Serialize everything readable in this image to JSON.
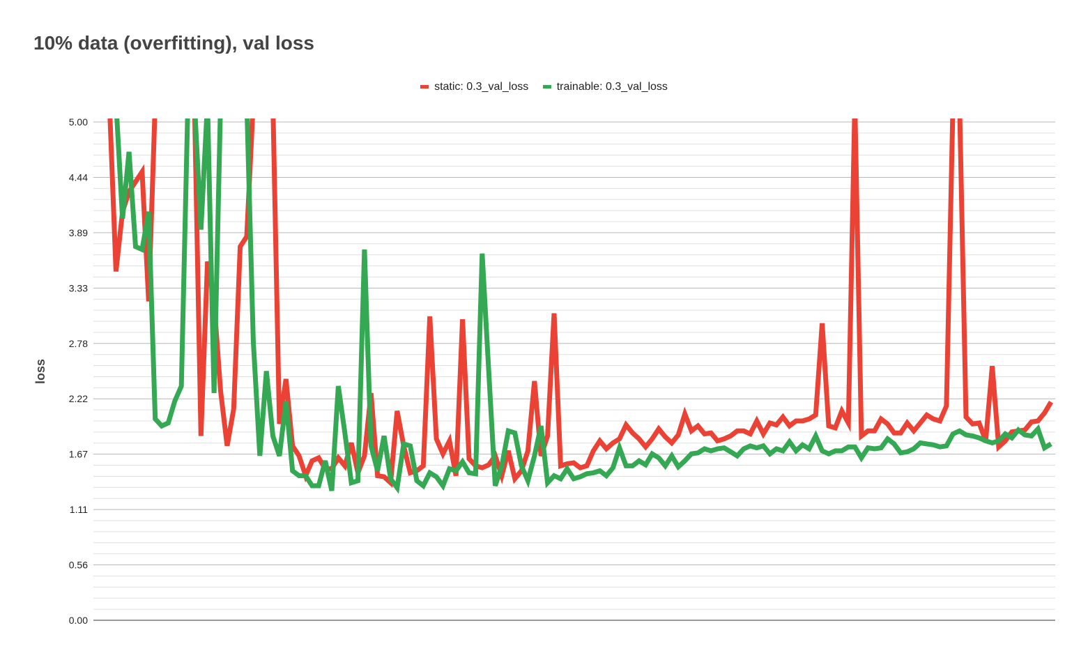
{
  "chart_data": {
    "type": "line",
    "title": "10% data (overfitting), val loss",
    "xlabel": "",
    "ylabel": "loss",
    "ylim": [
      0,
      5
    ],
    "yticks": [
      "0.00",
      "0.56",
      "1.11",
      "1.67",
      "2.22",
      "2.78",
      "3.33",
      "3.89",
      "4.44",
      "5.00"
    ],
    "minor_grid": true,
    "legend_position": "top-center",
    "series": [
      {
        "name": "static: 0.3_val_loss",
        "color": "#ea4335",
        "values": [
          5.2,
          3.5,
          4.1,
          4.3,
          4.4,
          4.5,
          3.2,
          5.2,
          5.2,
          5.2,
          5.2,
          5.2,
          5.2,
          5.2,
          1.85,
          3.6,
          3.2,
          2.3,
          1.75,
          2.12,
          3.75,
          3.85,
          5.2,
          5.2,
          5.2,
          5.2,
          1.97,
          2.42,
          1.75,
          1.65,
          1.45,
          1.6,
          1.63,
          1.52,
          1.52,
          1.63,
          1.55,
          1.78,
          1.48,
          1.65,
          2.28,
          1.45,
          1.44,
          1.38,
          2.1,
          1.75,
          1.48,
          1.5,
          1.55,
          3.05,
          1.82,
          1.67,
          1.8,
          1.45,
          3.02,
          1.62,
          1.55,
          1.53,
          1.56,
          1.65,
          1.45,
          1.7,
          1.42,
          1.5,
          1.7,
          2.4,
          1.65,
          1.85,
          3.08,
          1.55,
          1.57,
          1.58,
          1.53,
          1.55,
          1.7,
          1.8,
          1.72,
          1.78,
          1.82,
          1.96,
          1.88,
          1.82,
          1.74,
          1.82,
          1.92,
          1.84,
          1.78,
          1.86,
          2.07,
          1.9,
          1.95,
          1.87,
          1.88,
          1.8,
          1.82,
          1.85,
          1.9,
          1.9,
          1.87,
          2.0,
          1.87,
          1.98,
          1.96,
          2.04,
          1.95,
          2.0,
          2.0,
          2.02,
          2.06,
          2.98,
          1.95,
          1.93,
          2.1,
          1.98,
          5.2,
          1.85,
          1.9,
          1.9,
          2.02,
          1.97,
          1.88,
          1.88,
          1.98,
          1.9,
          1.98,
          2.06,
          2.02,
          2.0,
          2.15,
          5.2,
          5.2,
          2.04,
          1.97,
          1.98,
          1.8,
          2.55,
          1.74,
          1.8,
          1.89,
          1.9,
          1.91,
          1.99,
          2.0,
          2.08,
          2.19
        ]
      },
      {
        "name": "trainable: 0.3_val_loss",
        "color": "#34a853",
        "values": [
          5.2,
          5.2,
          4.03,
          4.7,
          3.75,
          3.72,
          4.1,
          2.02,
          1.95,
          1.98,
          2.2,
          2.35,
          5.2,
          5.2,
          3.92,
          5.2,
          2.28,
          5.2,
          5.2,
          5.2,
          5.2,
          5.2,
          2.8,
          1.65,
          2.5,
          1.85,
          1.65,
          2.2,
          1.5,
          1.45,
          1.45,
          1.35,
          1.35,
          1.6,
          1.3,
          2.35,
          1.88,
          1.38,
          1.4,
          3.72,
          1.75,
          1.5,
          1.85,
          1.42,
          1.33,
          1.77,
          1.75,
          1.4,
          1.35,
          1.48,
          1.44,
          1.35,
          1.52,
          1.5,
          1.59,
          1.48,
          1.47,
          3.68,
          2.5,
          1.35,
          1.55,
          1.9,
          1.88,
          1.55,
          1.4,
          1.65,
          1.95,
          1.38,
          1.45,
          1.42,
          1.52,
          1.42,
          1.44,
          1.47,
          1.48,
          1.5,
          1.45,
          1.53,
          1.73,
          1.55,
          1.55,
          1.6,
          1.56,
          1.67,
          1.63,
          1.55,
          1.65,
          1.54,
          1.6,
          1.67,
          1.68,
          1.72,
          1.7,
          1.72,
          1.73,
          1.69,
          1.65,
          1.72,
          1.75,
          1.73,
          1.75,
          1.67,
          1.72,
          1.7,
          1.79,
          1.7,
          1.76,
          1.72,
          1.85,
          1.7,
          1.67,
          1.7,
          1.7,
          1.74,
          1.74,
          1.63,
          1.73,
          1.72,
          1.73,
          1.82,
          1.77,
          1.68,
          1.69,
          1.72,
          1.78,
          1.77,
          1.76,
          1.74,
          1.75,
          1.87,
          1.9,
          1.86,
          1.85,
          1.83,
          1.8,
          1.78,
          1.8,
          1.87,
          1.83,
          1.91,
          1.86,
          1.85,
          1.92,
          1.73,
          1.77
        ]
      }
    ]
  }
}
